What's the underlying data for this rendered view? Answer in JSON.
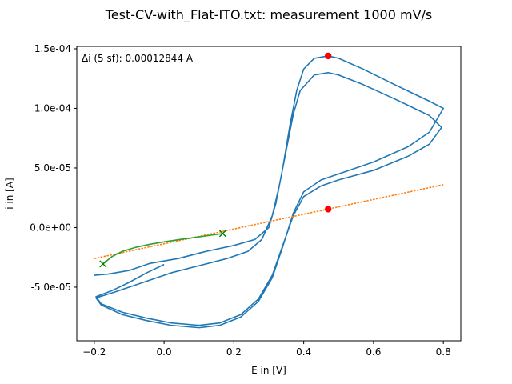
{
  "chart_data": {
    "type": "line",
    "title": "Test-CV-with_Flat-ITO.txt: measurement 1000 mV/s",
    "xlabel": "E in [V]",
    "ylabel": "i in [A]",
    "xlim": [
      -0.25,
      0.85
    ],
    "ylim": [
      -9.5e-05,
      0.000152
    ],
    "x_ticks": [
      -0.2,
      0.0,
      0.2,
      0.4,
      0.6,
      0.8
    ],
    "x_tick_labels": [
      "−0.2",
      "0.0",
      "0.2",
      "0.4",
      "0.6",
      "0.8"
    ],
    "y_ticks": [
      -5e-05,
      0.0,
      5e-05,
      0.0001,
      0.00015
    ],
    "y_tick_labels": [
      "-5.0e-05",
      "0.0e+00",
      "5.0e-05",
      "1.0e-04",
      "1.5e-04"
    ],
    "grid": false,
    "legend": "none",
    "annotation": "Δi (5 sf): 0.00012844 A",
    "colors": {
      "cv": "#1f77b4",
      "baseline": "#ff7f0e",
      "fit": "#2ca02c",
      "marker": "#ff0000",
      "cross": "#008000"
    },
    "series": [
      {
        "kind": "cv",
        "points": [
          [
            0.0,
            -3.1e-05
          ],
          [
            -0.05,
            -3.8e-05
          ],
          [
            -0.1,
            -4.6e-05
          ],
          [
            -0.15,
            -5.3e-05
          ],
          [
            -0.195,
            -5.8e-05
          ],
          [
            -0.18,
            -6.4e-05
          ],
          [
            -0.12,
            -7.1e-05
          ],
          [
            -0.05,
            -7.6e-05
          ],
          [
            0.02,
            -8e-05
          ],
          [
            0.1,
            -8.2e-05
          ],
          [
            0.16,
            -8e-05
          ],
          [
            0.22,
            -7.3e-05
          ],
          [
            0.27,
            -6e-05
          ],
          [
            0.31,
            -4e-05
          ],
          [
            0.34,
            -1.5e-05
          ],
          [
            0.37,
            1e-05
          ],
          [
            0.4,
            2.6e-05
          ],
          [
            0.45,
            3.5e-05
          ],
          [
            0.5,
            4e-05
          ],
          [
            0.6,
            4.8e-05
          ],
          [
            0.7,
            6e-05
          ],
          [
            0.76,
            7e-05
          ],
          [
            0.795,
            8.4e-05
          ],
          [
            0.76,
            9.4e-05
          ],
          [
            0.66,
            0.000108
          ],
          [
            0.57,
            0.00012
          ],
          [
            0.5,
            0.000128
          ],
          [
            0.47,
            0.00013
          ],
          [
            0.43,
            0.000128
          ],
          [
            0.39,
            0.000115
          ],
          [
            0.37,
            9.5e-05
          ],
          [
            0.35,
            6.5e-05
          ],
          [
            0.33,
            3.5e-05
          ],
          [
            0.31,
            1e-05
          ],
          [
            0.28,
            -1e-05
          ],
          [
            0.24,
            -2e-05
          ],
          [
            0.18,
            -2.6e-05
          ],
          [
            0.1,
            -3.2e-05
          ],
          [
            0.02,
            -3.8e-05
          ],
          [
            -0.06,
            -4.6e-05
          ],
          [
            -0.14,
            -5.4e-05
          ],
          [
            -0.195,
            -5.9e-05
          ],
          [
            -0.18,
            -6.5e-05
          ],
          [
            -0.12,
            -7.3e-05
          ],
          [
            -0.05,
            -7.8e-05
          ],
          [
            0.02,
            -8.2e-05
          ],
          [
            0.1,
            -8.4e-05
          ],
          [
            0.16,
            -8.2e-05
          ],
          [
            0.22,
            -7.5e-05
          ],
          [
            0.27,
            -6.2e-05
          ],
          [
            0.31,
            -4.2e-05
          ],
          [
            0.34,
            -1.6e-05
          ],
          [
            0.37,
            1.2e-05
          ],
          [
            0.4,
            3e-05
          ],
          [
            0.45,
            4e-05
          ],
          [
            0.5,
            4.5e-05
          ],
          [
            0.6,
            5.5e-05
          ],
          [
            0.7,
            6.8e-05
          ],
          [
            0.76,
            8e-05
          ],
          [
            0.8,
            0.0001
          ],
          [
            0.76,
            0.000106
          ],
          [
            0.66,
            0.00012
          ],
          [
            0.57,
            0.000133
          ],
          [
            0.5,
            0.000142
          ],
          [
            0.47,
            0.000144
          ],
          [
            0.43,
            0.000142
          ],
          [
            0.4,
            0.000133
          ],
          [
            0.38,
            0.000115
          ],
          [
            0.36,
            8.5e-05
          ],
          [
            0.34,
            5e-05
          ],
          [
            0.32,
            2e-05
          ],
          [
            0.3,
            0.0
          ],
          [
            0.26,
            -1e-05
          ],
          [
            0.2,
            -1.5e-05
          ],
          [
            0.12,
            -2e-05
          ],
          [
            0.04,
            -2.6e-05
          ],
          [
            -0.04,
            -3e-05
          ],
          [
            -0.1,
            -3.6e-05
          ],
          [
            -0.16,
            -3.9e-05
          ],
          [
            -0.2,
            -4e-05
          ]
        ]
      },
      {
        "kind": "baseline",
        "points": [
          [
            -0.2,
            -2.6e-05
          ],
          [
            0.8,
            3.6e-05
          ]
        ]
      },
      {
        "kind": "fit",
        "points": [
          [
            -0.175,
            -3.05e-05
          ],
          [
            -0.15,
            -2.45e-05
          ],
          [
            -0.12,
            -2e-05
          ],
          [
            -0.08,
            -1.65e-05
          ],
          [
            -0.04,
            -1.4e-05
          ],
          [
            0.0,
            -1.2e-05
          ],
          [
            0.04,
            -1.02e-05
          ],
          [
            0.08,
            -8.6e-06
          ],
          [
            0.12,
            -7e-06
          ],
          [
            0.168,
            -5e-06
          ]
        ]
      }
    ],
    "peak_markers": [
      [
        0.47,
        0.000144
      ],
      [
        0.47,
        1.55e-05
      ]
    ],
    "cross_markers": [
      [
        -0.175,
        -3.05e-05
      ],
      [
        0.168,
        -5e-06
      ]
    ]
  }
}
